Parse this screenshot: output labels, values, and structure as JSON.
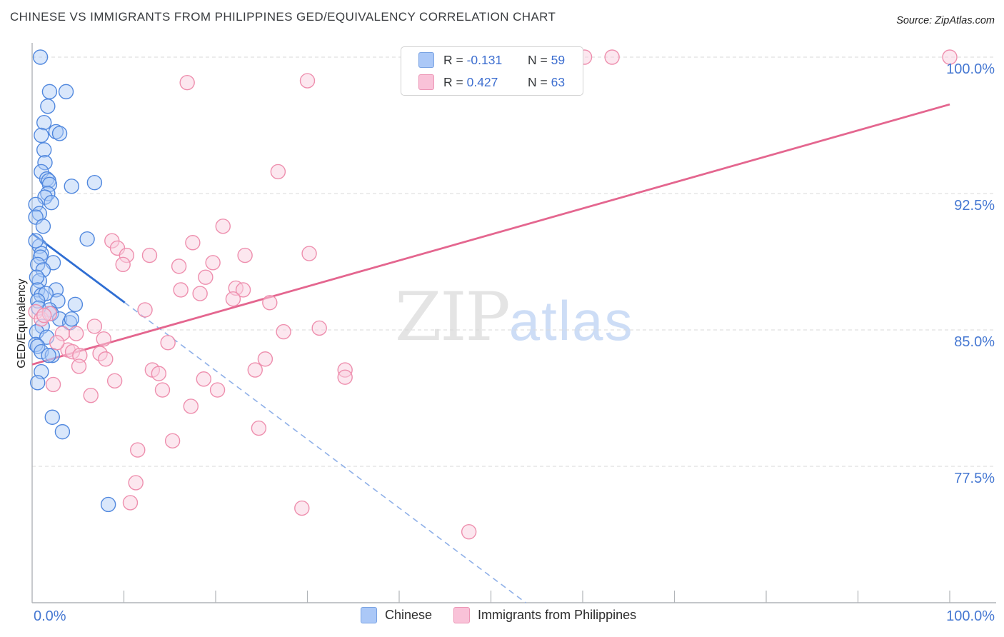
{
  "header": {
    "title": "CHINESE VS IMMIGRANTS FROM PHILIPPINES GED/EQUIVALENCY CORRELATION CHART",
    "source": "Source: ZipAtlas.com"
  },
  "watermark": {
    "part1": "ZIP",
    "part2": "atlas"
  },
  "axes": {
    "y_label": "GED/Equivalency",
    "y_ticks": [
      {
        "label": "100.0%",
        "value": 100.0
      },
      {
        "label": "92.5%",
        "value": 92.5
      },
      {
        "label": "85.0%",
        "value": 85.0
      },
      {
        "label": "77.5%",
        "value": 77.5
      }
    ],
    "x_left_label": "0.0%",
    "x_right_label": "100.0%"
  },
  "correlation_legend": {
    "rows": [
      {
        "series": "Chinese",
        "r_prefix": "R = ",
        "r_value": "-0.131",
        "n_prefix": "N = ",
        "n_value": "59"
      },
      {
        "series": "Immigrants from Philippines",
        "r_prefix": "R = ",
        "r_value": "0.427",
        "n_prefix": "N = ",
        "n_value": "63"
      }
    ]
  },
  "series_legend": [
    {
      "label": "Chinese"
    },
    {
      "label": "Immigrants from Philippines"
    }
  ],
  "colors": {
    "chinese_stroke": "#5188de",
    "chinese_fill": "rgba(170,201,247,0.45)",
    "philippines_stroke": "#ee8fae",
    "philippines_fill": "rgba(250,208,223,0.5)",
    "chinese_trend": "#2f6ed3",
    "chinese_trend_dashed": "#8fb0e8",
    "philippines_trend": "#e4668f",
    "gridline": "#d9d9d9",
    "axis": "#b0b4b8",
    "tick_text": "#4678d2"
  },
  "chart_data": {
    "type": "scatter",
    "title": "CHINESE VS IMMIGRANTS FROM PHILIPPINES GED/EQUIVALENCY CORRELATION CHART",
    "xlabel": "",
    "ylabel": "GED/Equivalency",
    "x_range": [
      0,
      100
    ],
    "y_range": [
      70,
      100.5
    ],
    "x_units": "%",
    "y_units": "%",
    "grid": "horizontal-dashed",
    "legend_position": "bottom-center",
    "series": [
      {
        "name": "Chinese",
        "r": -0.131,
        "n": 59,
        "points": [
          [
            0.9,
            100.0
          ],
          [
            1.9,
            98.1
          ],
          [
            3.7,
            98.1
          ],
          [
            1.7,
            97.3
          ],
          [
            1.3,
            96.4
          ],
          [
            1.0,
            95.7
          ],
          [
            2.6,
            95.9
          ],
          [
            3.0,
            95.8
          ],
          [
            1.3,
            94.9
          ],
          [
            1.4,
            94.2
          ],
          [
            1.0,
            93.7
          ],
          [
            1.6,
            93.3
          ],
          [
            1.8,
            93.2
          ],
          [
            1.9,
            93.0
          ],
          [
            4.3,
            92.9
          ],
          [
            6.8,
            93.1
          ],
          [
            1.7,
            92.5
          ],
          [
            1.4,
            92.3
          ],
          [
            2.1,
            92.0
          ],
          [
            0.4,
            91.9
          ],
          [
            0.8,
            91.4
          ],
          [
            0.4,
            91.2
          ],
          [
            1.2,
            90.7
          ],
          [
            6.0,
            90.0
          ],
          [
            0.8,
            89.6
          ],
          [
            1.0,
            89.2
          ],
          [
            0.4,
            89.9
          ],
          [
            0.9,
            89.0
          ],
          [
            0.6,
            88.6
          ],
          [
            2.3,
            88.7
          ],
          [
            1.2,
            88.3
          ],
          [
            0.8,
            87.7
          ],
          [
            0.5,
            87.9
          ],
          [
            0.6,
            87.2
          ],
          [
            1.0,
            86.9
          ],
          [
            2.6,
            87.2
          ],
          [
            1.5,
            87.0
          ],
          [
            2.8,
            86.6
          ],
          [
            0.6,
            86.6
          ],
          [
            0.7,
            86.2
          ],
          [
            4.7,
            86.4
          ],
          [
            1.9,
            86.1
          ],
          [
            2.1,
            85.9
          ],
          [
            3.0,
            85.6
          ],
          [
            4.1,
            85.4
          ],
          [
            4.3,
            85.6
          ],
          [
            1.1,
            85.2
          ],
          [
            0.5,
            84.9
          ],
          [
            1.6,
            84.6
          ],
          [
            0.4,
            84.2
          ],
          [
            0.6,
            84.1
          ],
          [
            1.0,
            83.8
          ],
          [
            2.2,
            83.6
          ],
          [
            1.8,
            83.6
          ],
          [
            1.0,
            82.7
          ],
          [
            0.6,
            82.1
          ],
          [
            2.2,
            80.2
          ],
          [
            3.3,
            79.4
          ],
          [
            8.3,
            75.4
          ]
        ]
      },
      {
        "name": "Immigrants from Philippines",
        "r": 0.427,
        "n": 63,
        "points": [
          [
            100.0,
            100.0
          ],
          [
            60.2,
            100.0
          ],
          [
            63.2,
            100.0
          ],
          [
            16.9,
            98.6
          ],
          [
            30.0,
            98.7
          ],
          [
            26.8,
            93.7
          ],
          [
            8.7,
            89.9
          ],
          [
            9.3,
            89.5
          ],
          [
            10.3,
            89.1
          ],
          [
            9.9,
            88.6
          ],
          [
            12.8,
            89.1
          ],
          [
            17.5,
            89.8
          ],
          [
            20.8,
            90.7
          ],
          [
            16.0,
            88.5
          ],
          [
            19.7,
            88.7
          ],
          [
            23.2,
            89.1
          ],
          [
            30.2,
            89.2
          ],
          [
            18.9,
            87.9
          ],
          [
            16.2,
            87.2
          ],
          [
            18.3,
            87.0
          ],
          [
            22.2,
            87.3
          ],
          [
            23.0,
            87.2
          ],
          [
            21.9,
            86.7
          ],
          [
            25.9,
            86.5
          ],
          [
            12.3,
            86.1
          ],
          [
            27.4,
            84.9
          ],
          [
            31.3,
            85.1
          ],
          [
            0.4,
            86.0
          ],
          [
            1.0,
            85.6
          ],
          [
            1.9,
            85.9
          ],
          [
            1.3,
            85.8
          ],
          [
            3.3,
            84.8
          ],
          [
            4.8,
            84.8
          ],
          [
            6.8,
            85.2
          ],
          [
            3.9,
            83.9
          ],
          [
            4.4,
            83.8
          ],
          [
            5.2,
            83.6
          ],
          [
            7.4,
            83.7
          ],
          [
            7.8,
            84.5
          ],
          [
            8.0,
            83.4
          ],
          [
            5.1,
            83.0
          ],
          [
            2.3,
            82.0
          ],
          [
            6.4,
            81.4
          ],
          [
            14.8,
            84.3
          ],
          [
            13.1,
            82.8
          ],
          [
            13.8,
            82.6
          ],
          [
            14.2,
            81.7
          ],
          [
            17.3,
            80.8
          ],
          [
            18.7,
            82.3
          ],
          [
            15.3,
            78.9
          ],
          [
            11.5,
            78.4
          ],
          [
            11.3,
            76.6
          ],
          [
            10.7,
            75.5
          ],
          [
            25.4,
            83.4
          ],
          [
            24.3,
            82.8
          ],
          [
            20.2,
            81.7
          ],
          [
            34.1,
            82.8
          ],
          [
            34.1,
            82.4
          ],
          [
            24.7,
            79.6
          ],
          [
            29.4,
            75.2
          ],
          [
            47.6,
            73.9
          ],
          [
            2.7,
            84.3
          ],
          [
            9.0,
            82.2
          ]
        ]
      }
    ],
    "trend_lines": [
      {
        "series": "Chinese",
        "solid": [
          [
            0,
            90.3
          ],
          [
            10.1,
            86.5
          ]
        ],
        "dashed": [
          [
            10.1,
            86.5
          ],
          [
            53.8,
            70.0
          ]
        ]
      },
      {
        "series": "Immigrants from Philippines",
        "solid": [
          [
            0,
            83.1
          ],
          [
            100,
            97.4
          ]
        ]
      }
    ]
  }
}
